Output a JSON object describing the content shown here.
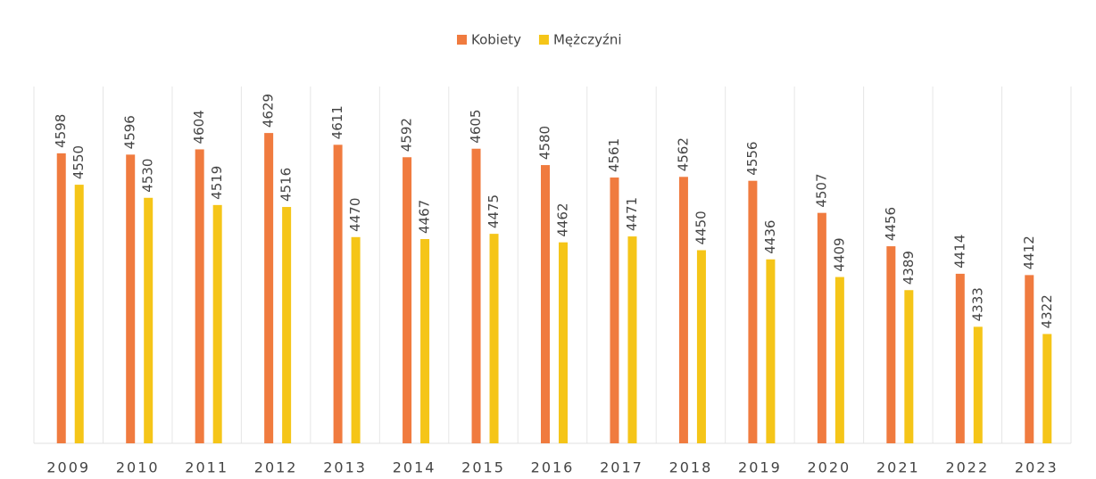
{
  "chart_data": {
    "type": "bar",
    "categories": [
      "2009",
      "2010",
      "2011",
      "2012",
      "2013",
      "2014",
      "2015",
      "2016",
      "2017",
      "2018",
      "2019",
      "2020",
      "2021",
      "2022",
      "2023"
    ],
    "series": [
      {
        "name": "Kobiety",
        "color": "#f07b3f",
        "values": [
          4598,
          4596,
          4604,
          4629,
          4611,
          4592,
          4605,
          4580,
          4561,
          4562,
          4556,
          4507,
          4456,
          4414,
          4412
        ]
      },
      {
        "name": "Mężczyźni",
        "color": "#f5c518",
        "values": [
          4550,
          4530,
          4519,
          4516,
          4470,
          4467,
          4475,
          4462,
          4471,
          4450,
          4436,
          4409,
          4389,
          4333,
          4322
        ]
      }
    ],
    "ylim": [
      4155,
      4700
    ],
    "legend": "top"
  }
}
